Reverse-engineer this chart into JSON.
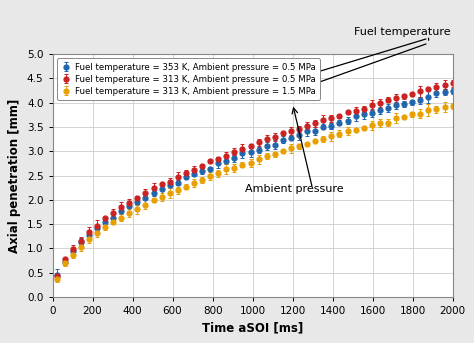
{
  "xlabel": "Time aSOI [ms]",
  "ylabel": "Axial penetration [mm]",
  "xlim": [
    0,
    2000
  ],
  "ylim": [
    0,
    5
  ],
  "xticks": [
    0,
    200,
    400,
    600,
    800,
    1000,
    1200,
    1400,
    1600,
    1800,
    2000
  ],
  "yticks": [
    0,
    0.5,
    1.0,
    1.5,
    2.0,
    2.5,
    3.0,
    3.5,
    4.0,
    4.5,
    5.0
  ],
  "series": [
    {
      "label": "Fuel temperature = 353 K, Ambient pressure = 0.5 MPa",
      "color": "#2166ac",
      "scale": 4.25
    },
    {
      "label": "Fuel temperature = 313 K, Ambient pressure = 0.5 MPa",
      "color": "#cc2222",
      "scale": 4.42
    },
    {
      "label": "Fuel temperature = 313 K, Ambient pressure = 1.5 MPa",
      "color": "#e8a000",
      "scale": 3.95
    }
  ],
  "annotation_fuel_temp": "Fuel temperature",
  "annotation_amb_press": "Ambient pressure",
  "plot_bg": "#ffffff",
  "fig_bg": "#e8e8e8",
  "grid_color": "#cccccc",
  "markersize": 3.5,
  "errorbar_cap": 1.5,
  "n_points": 50
}
